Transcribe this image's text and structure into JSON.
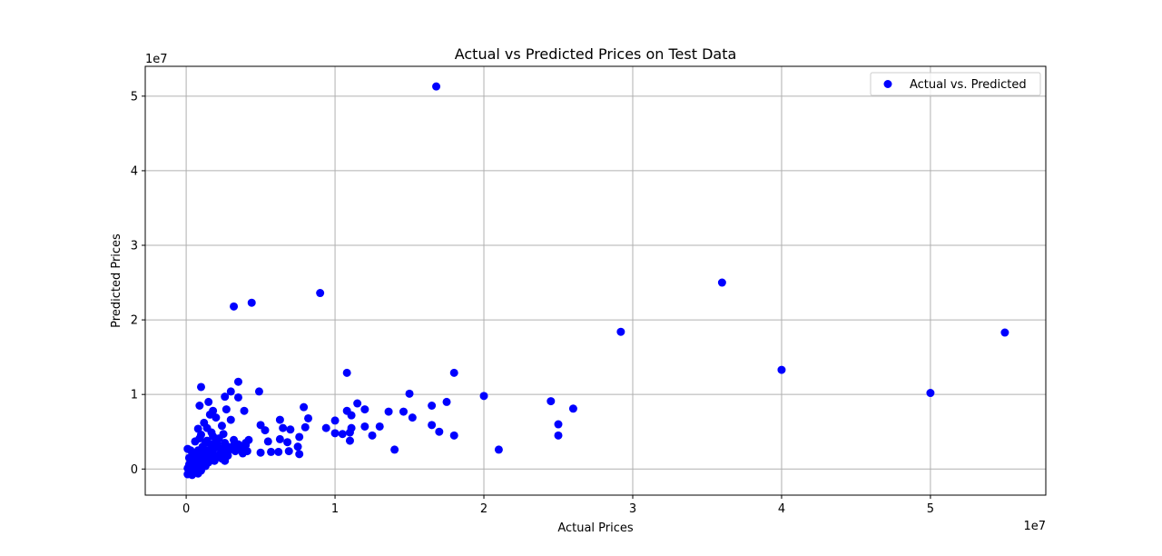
{
  "chart_data": {
    "type": "scatter",
    "title": "Actual vs Predicted Prices on Test Data",
    "xlabel": "Actual Prices",
    "ylabel": "Predicted Prices",
    "x_offset_text": "1e7",
    "y_offset_text": "1e7",
    "xlim": [
      -2750000,
      57750000
    ],
    "ylim": [
      -3500000,
      54000000
    ],
    "xticks": [
      0,
      10000000,
      20000000,
      30000000,
      40000000,
      50000000
    ],
    "xtick_labels": [
      "0",
      "1",
      "2",
      "3",
      "4",
      "5"
    ],
    "yticks": [
      0,
      10000000,
      20000000,
      30000000,
      40000000,
      50000000
    ],
    "ytick_labels": [
      "0",
      "1",
      "2",
      "3",
      "4",
      "5"
    ],
    "grid": true,
    "legend_position": "top-right",
    "colors": {
      "points": "#0000ff",
      "grid": "#b0b0b0"
    },
    "series": [
      {
        "name": "Actual vs. Predicted",
        "points": [
          [
            16800000,
            51300000
          ],
          [
            36000000,
            25000000
          ],
          [
            9000000,
            23600000
          ],
          [
            4400000,
            22300000
          ],
          [
            3200000,
            21800000
          ],
          [
            29200000,
            18400000
          ],
          [
            55000000,
            18300000
          ],
          [
            40000000,
            13300000
          ],
          [
            10800000,
            12900000
          ],
          [
            18000000,
            12900000
          ],
          [
            3500000,
            11700000
          ],
          [
            1000000,
            11000000
          ],
          [
            50000000,
            10200000
          ],
          [
            4900000,
            10400000
          ],
          [
            3000000,
            10400000
          ],
          [
            3500000,
            9600000
          ],
          [
            15000000,
            10100000
          ],
          [
            20000000,
            9800000
          ],
          [
            24500000,
            9100000
          ],
          [
            17500000,
            9000000
          ],
          [
            1500000,
            9000000
          ],
          [
            900000,
            8500000
          ],
          [
            11500000,
            8800000
          ],
          [
            26000000,
            8100000
          ],
          [
            7900000,
            8300000
          ],
          [
            16500000,
            8500000
          ],
          [
            12000000,
            8000000
          ],
          [
            3900000,
            7800000
          ],
          [
            10800000,
            7800000
          ],
          [
            13600000,
            7700000
          ],
          [
            14600000,
            7700000
          ],
          [
            11100000,
            7200000
          ],
          [
            15200000,
            6900000
          ],
          [
            8200000,
            6800000
          ],
          [
            3000000,
            6600000
          ],
          [
            6300000,
            6600000
          ],
          [
            10000000,
            6500000
          ],
          [
            5000000,
            5900000
          ],
          [
            9400000,
            5500000
          ],
          [
            16500000,
            5900000
          ],
          [
            25000000,
            6000000
          ],
          [
            11100000,
            5500000
          ],
          [
            12000000,
            5700000
          ],
          [
            13000000,
            5700000
          ],
          [
            7000000,
            5300000
          ],
          [
            8000000,
            5600000
          ],
          [
            17000000,
            5000000
          ],
          [
            10000000,
            4800000
          ],
          [
            10500000,
            4700000
          ],
          [
            11000000,
            4900000
          ],
          [
            12500000,
            4500000
          ],
          [
            18000000,
            4500000
          ],
          [
            25000000,
            4500000
          ],
          [
            7600000,
            4300000
          ],
          [
            6300000,
            4000000
          ],
          [
            5500000,
            3700000
          ],
          [
            6800000,
            3600000
          ],
          [
            11000000,
            3800000
          ],
          [
            4000000,
            3500000
          ],
          [
            7500000,
            3000000
          ],
          [
            14000000,
            2600000
          ],
          [
            21000000,
            2600000
          ],
          [
            6900000,
            2400000
          ],
          [
            6200000,
            2300000
          ],
          [
            5000000,
            2200000
          ],
          [
            5700000,
            2300000
          ],
          [
            7600000,
            2000000
          ],
          [
            3800000,
            2100000
          ],
          [
            4100000,
            2400000
          ],
          [
            3400000,
            2900000
          ],
          [
            3200000,
            3900000
          ],
          [
            4200000,
            3900000
          ],
          [
            5300000,
            5200000
          ],
          [
            6500000,
            5500000
          ],
          [
            2600000,
            9700000
          ],
          [
            2700000,
            8000000
          ],
          [
            1800000,
            7800000
          ],
          [
            2000000,
            6900000
          ],
          [
            1600000,
            7300000
          ],
          [
            1200000,
            6200000
          ],
          [
            2400000,
            5800000
          ],
          [
            1400000,
            5500000
          ],
          [
            800000,
            5400000
          ],
          [
            1000000,
            4600000
          ],
          [
            1800000,
            4400000
          ],
          [
            2200000,
            4100000
          ],
          [
            600000,
            3700000
          ],
          [
            1300000,
            3500000
          ],
          [
            1700000,
            3300000
          ],
          [
            2100000,
            3300000
          ],
          [
            2700000,
            3100000
          ],
          [
            3100000,
            3000000
          ],
          [
            1100000,
            3000000
          ],
          [
            1900000,
            2800000
          ],
          [
            2300000,
            2700000
          ],
          [
            2900000,
            2600000
          ],
          [
            800000,
            2500000
          ],
          [
            1500000,
            2500000
          ],
          [
            2500000,
            2300000
          ],
          [
            3300000,
            2400000
          ],
          [
            600000,
            2100000
          ],
          [
            1200000,
            2100000
          ],
          [
            1800000,
            2000000
          ],
          [
            2200000,
            1900000
          ],
          [
            2800000,
            1800000
          ],
          [
            400000,
            1800000
          ],
          [
            1000000,
            1700000
          ],
          [
            1600000,
            1600000
          ],
          [
            2000000,
            1500000
          ],
          [
            2400000,
            1400000
          ],
          [
            200000,
            1500000
          ],
          [
            700000,
            1400000
          ],
          [
            1400000,
            1200000
          ],
          [
            1900000,
            1100000
          ],
          [
            2600000,
            1100000
          ],
          [
            300000,
            1100000
          ],
          [
            900000,
            1000000
          ],
          [
            1500000,
            900000
          ],
          [
            500000,
            800000
          ],
          [
            1100000,
            700000
          ],
          [
            200000,
            600000
          ],
          [
            700000,
            500000
          ],
          [
            1300000,
            400000
          ],
          [
            400000,
            300000
          ],
          [
            900000,
            200000
          ],
          [
            100000,
            100000
          ],
          [
            600000,
            0
          ],
          [
            1000000,
            -200000
          ],
          [
            200000,
            -300000
          ],
          [
            500000,
            -500000
          ],
          [
            800000,
            -600000
          ],
          [
            100000,
            -700000
          ],
          [
            400000,
            -800000
          ],
          [
            300000,
            2500000
          ],
          [
            100000,
            2700000
          ],
          [
            1700000,
            4900000
          ],
          [
            2500000,
            4700000
          ],
          [
            900000,
            4100000
          ],
          [
            1400000,
            3800000
          ],
          [
            2000000,
            3700000
          ],
          [
            2600000,
            3500000
          ],
          [
            3500000,
            3300000
          ],
          [
            3700000,
            2700000
          ],
          [
            4000000,
            3200000
          ]
        ]
      }
    ]
  }
}
